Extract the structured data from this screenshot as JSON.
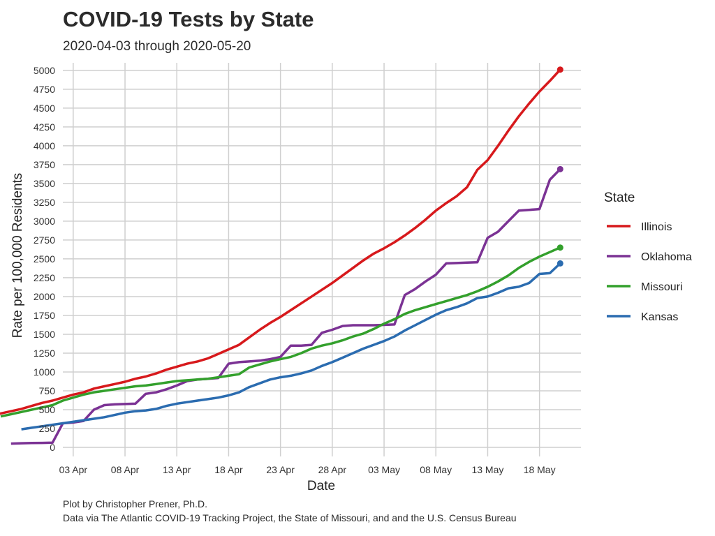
{
  "chart_data": {
    "type": "line",
    "title": "COVID-19 Tests by State",
    "subtitle": "2020-04-03 through 2020-05-20",
    "xlabel": "Date",
    "ylabel": "Rate per 100,000 Residents",
    "x_start": "2020-04-03",
    "x_ticks": [
      {
        "date": "2020-04-03",
        "label": "03 Apr"
      },
      {
        "date": "2020-04-08",
        "label": "08 Apr"
      },
      {
        "date": "2020-04-13",
        "label": "13 Apr"
      },
      {
        "date": "2020-04-18",
        "label": "18 Apr"
      },
      {
        "date": "2020-04-23",
        "label": "23 Apr"
      },
      {
        "date": "2020-04-28",
        "label": "28 Apr"
      },
      {
        "date": "2020-05-03",
        "label": "03 May"
      },
      {
        "date": "2020-05-08",
        "label": "08 May"
      },
      {
        "date": "2020-05-13",
        "label": "13 May"
      },
      {
        "date": "2020-05-18",
        "label": "18 May"
      }
    ],
    "xlim": [
      "2020-04-02",
      "2020-05-22"
    ],
    "y_ticks": [
      0,
      250,
      500,
      750,
      1000,
      1250,
      1500,
      1750,
      2000,
      2250,
      2500,
      2750,
      3000,
      3250,
      3500,
      3750,
      4000,
      4250,
      4500,
      4750,
      5000
    ],
    "ylim": [
      -120,
      5100
    ],
    "grid": true,
    "legend_title": "State",
    "legend_position": "right",
    "series": [
      {
        "name": "Illinois",
        "color": "#d7191c",
        "values": [
          370,
          410,
          450,
          480,
          510,
          550,
          590,
          620,
          660,
          700,
          730,
          780,
          810,
          840,
          870,
          910,
          940,
          980,
          1030,
          1070,
          1110,
          1140,
          1180,
          1240,
          1300,
          1360,
          1460,
          1560,
          1650,
          1730,
          1820,
          1910,
          2000,
          2090,
          2180,
          2280,
          2380,
          2480,
          2570,
          2640,
          2720,
          2810,
          2910,
          3020,
          3140,
          3240,
          3330,
          3450,
          3680,
          3810,
          4000,
          4200,
          4390,
          4560,
          4720,
          4860,
          5010
        ]
      },
      {
        "name": "Oklahoma",
        "color": "#7b3294",
        "values": [
          50,
          55,
          58,
          60,
          62,
          320,
          330,
          350,
          500,
          560,
          570,
          575,
          580,
          710,
          730,
          770,
          820,
          880,
          900,
          910,
          920,
          1110,
          1130,
          1140,
          1150,
          1170,
          1200,
          1350,
          1350,
          1360,
          1520,
          1560,
          1610,
          1620,
          1620,
          1620,
          1625,
          1630,
          2020,
          2100,
          2200,
          2290,
          2440,
          2445,
          2450,
          2455,
          2780,
          2860,
          3000,
          3140,
          3150,
          3160,
          3550,
          3690
        ]
      },
      {
        "name": "Missouri",
        "color": "#33a02c",
        "values": [
          410,
          440,
          470,
          500,
          530,
          560,
          620,
          660,
          700,
          730,
          750,
          770,
          790,
          810,
          820,
          840,
          860,
          880,
          890,
          900,
          910,
          930,
          950,
          970,
          1060,
          1100,
          1140,
          1170,
          1200,
          1250,
          1310,
          1350,
          1380,
          1420,
          1470,
          1510,
          1570,
          1640,
          1700,
          1770,
          1820,
          1860,
          1900,
          1940,
          1980,
          2020,
          2070,
          2130,
          2200,
          2280,
          2380,
          2460,
          2530,
          2590,
          2650
        ]
      },
      {
        "name": "Kansas",
        "color": "#2b6cb0",
        "values": [
          240,
          260,
          280,
          300,
          320,
          340,
          360,
          380,
          400,
          430,
          460,
          480,
          490,
          510,
          550,
          580,
          600,
          620,
          640,
          660,
          690,
          730,
          800,
          850,
          900,
          930,
          950,
          980,
          1020,
          1080,
          1130,
          1190,
          1250,
          1310,
          1360,
          1410,
          1470,
          1550,
          1620,
          1690,
          1760,
          1820,
          1860,
          1910,
          1980,
          2000,
          2050,
          2110,
          2130,
          2180,
          2300,
          2310,
          2440
        ]
      }
    ]
  },
  "caption": {
    "line1": "Plot by Christopher Prener, Ph.D.",
    "line2": "Data via The Atlantic COVID-19 Tracking Project, the State of Missouri, and and the U.S. Census Bureau"
  }
}
